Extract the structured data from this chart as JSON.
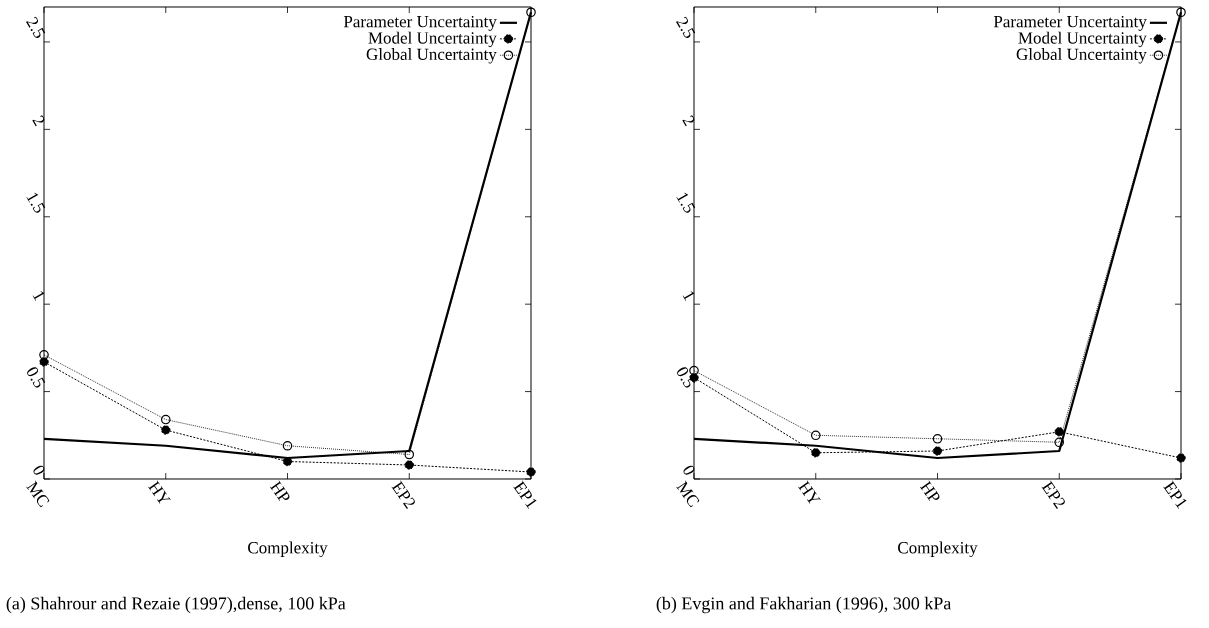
{
  "chart_data": [
    {
      "type": "line",
      "categories": [
        "MC",
        "HY",
        "HP",
        "EP2",
        "EP1"
      ],
      "xlabel": "Complexity",
      "annotations": [
        "(a) Shahrour and Rezaie (1997),dense, 100 kPa"
      ],
      "ylim": [
        0,
        2.7
      ],
      "yticks": [
        0,
        0.5,
        1,
        1.5,
        2,
        2.5
      ],
      "legend": "top right",
      "series": [
        {
          "name": "Parameter Uncertainty",
          "color": "#000000",
          "marker": "none",
          "line_style": "solid",
          "values": [
            0.23,
            0.19,
            0.12,
            0.16,
            2.67
          ]
        },
        {
          "name": "Model Uncertainty",
          "color": "#000000",
          "marker": "circle",
          "line_style": "dashed",
          "values": [
            0.67,
            0.28,
            0.1,
            0.08,
            0.04
          ]
        },
        {
          "name": "Global Uncertainty",
          "color": "#000000",
          "marker": "open circle",
          "line_style": "dotted",
          "values": [
            0.71,
            0.34,
            0.19,
            0.14,
            2.67
          ]
        }
      ]
    },
    {
      "type": "line",
      "categories": [
        "MC",
        "HY",
        "HP",
        "EP2",
        "EP1"
      ],
      "xlabel": "Complexity",
      "annotations": [
        "(b) Evgin and Fakharian (1996), 300 kPa"
      ],
      "ylim": [
        0,
        2.7
      ],
      "yticks": [
        0,
        0.5,
        1,
        1.5,
        2,
        2.5
      ],
      "legend": "top right",
      "series": [
        {
          "name": "Parameter Uncertainty",
          "color": "#000000",
          "marker": "none",
          "line_style": "solid",
          "values": [
            0.23,
            0.19,
            0.12,
            0.16,
            2.67
          ]
        },
        {
          "name": "Model Uncertainty",
          "color": "#000000",
          "marker": "circle",
          "line_style": "dashed",
          "values": [
            0.58,
            0.15,
            0.16,
            0.27,
            0.12
          ]
        },
        {
          "name": "Global Uncertainty",
          "color": "#000000",
          "marker": "open circle",
          "line_style": "dotted",
          "values": [
            0.62,
            0.25,
            0.23,
            0.21,
            2.67
          ]
        }
      ]
    }
  ]
}
